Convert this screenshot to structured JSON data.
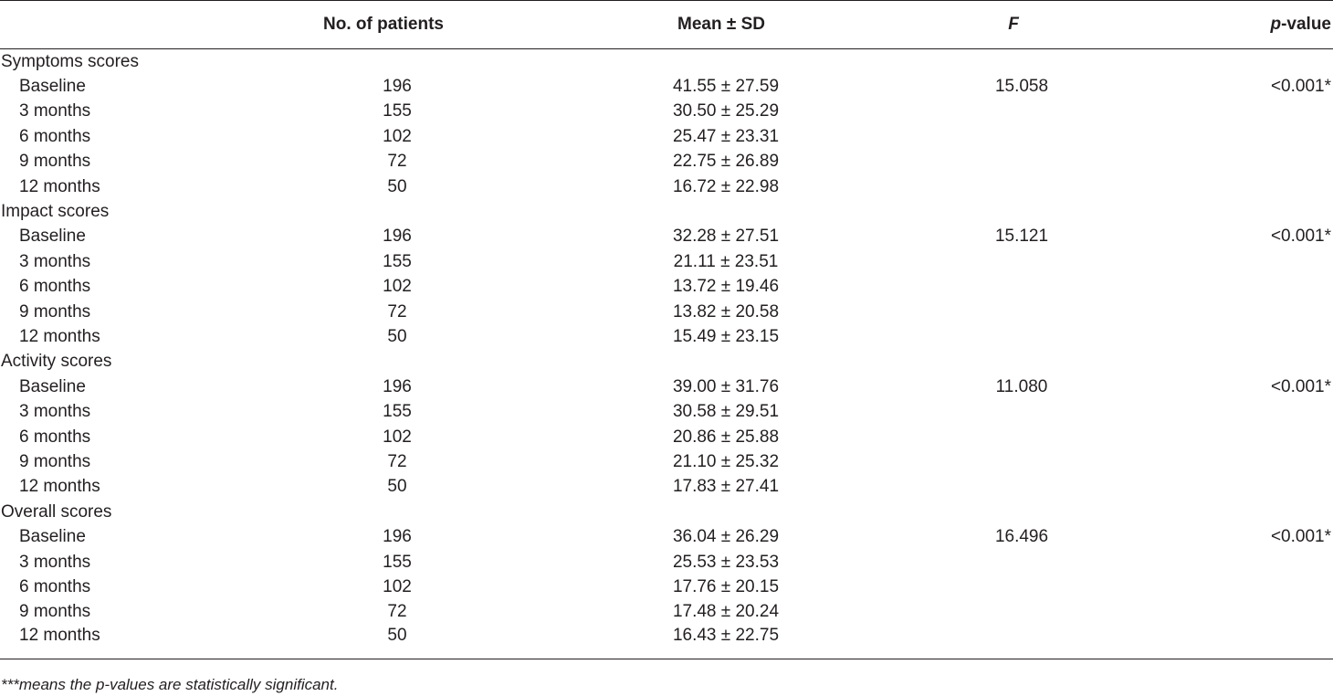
{
  "table": {
    "headers": {
      "label": "",
      "n": "No. of patients",
      "mean": "Mean ± SD",
      "f": "F",
      "p_italic": "p",
      "p_rest": "-value"
    },
    "groups": [
      {
        "title": "Symptoms scores",
        "rows": [
          {
            "label": "Baseline",
            "n": "196",
            "mean": "41.55 ± 27.59",
            "f": "15.058",
            "p": "<0.001*"
          },
          {
            "label": "3 months",
            "n": "155",
            "mean": "30.50 ± 25.29",
            "f": "",
            "p": ""
          },
          {
            "label": "6 months",
            "n": "102",
            "mean": "25.47 ± 23.31",
            "f": "",
            "p": ""
          },
          {
            "label": "9 months",
            "n": "72",
            "mean": "22.75 ± 26.89",
            "f": "",
            "p": ""
          },
          {
            "label": "12 months",
            "n": "50",
            "mean": "16.72 ± 22.98",
            "f": "",
            "p": ""
          }
        ]
      },
      {
        "title": "Impact scores",
        "rows": [
          {
            "label": "Baseline",
            "n": "196",
            "mean": "32.28 ± 27.51",
            "f": "15.121",
            "p": "<0.001*"
          },
          {
            "label": "3 months",
            "n": "155",
            "mean": "21.11 ± 23.51",
            "f": "",
            "p": ""
          },
          {
            "label": "6 months",
            "n": "102",
            "mean": "13.72 ± 19.46",
            "f": "",
            "p": ""
          },
          {
            "label": "9 months",
            "n": "72",
            "mean": "13.82 ± 20.58",
            "f": "",
            "p": ""
          },
          {
            "label": "12 months",
            "n": "50",
            "mean": "15.49 ± 23.15",
            "f": "",
            "p": ""
          }
        ]
      },
      {
        "title": "Activity scores",
        "rows": [
          {
            "label": "Baseline",
            "n": "196",
            "mean": "39.00 ± 31.76",
            "f": "11.080",
            "p": "<0.001*"
          },
          {
            "label": "3 months",
            "n": "155",
            "mean": "30.58 ± 29.51",
            "f": "",
            "p": ""
          },
          {
            "label": "6 months",
            "n": "102",
            "mean": "20.86 ± 25.88",
            "f": "",
            "p": ""
          },
          {
            "label": "9 months",
            "n": "72",
            "mean": "21.10 ± 25.32",
            "f": "",
            "p": ""
          },
          {
            "label": "12 months",
            "n": "50",
            "mean": "17.83 ± 27.41",
            "f": "",
            "p": ""
          }
        ]
      },
      {
        "title": "Overall scores",
        "rows": [
          {
            "label": "Baseline",
            "n": "196",
            "mean": "36.04 ± 26.29",
            "f": "16.496",
            "p": "<0.001*"
          },
          {
            "label": "3 months",
            "n": "155",
            "mean": "25.53 ± 23.53",
            "f": "",
            "p": ""
          },
          {
            "label": "6 months",
            "n": "102",
            "mean": "17.76 ± 20.15",
            "f": "",
            "p": ""
          },
          {
            "label": "9 months",
            "n": "72",
            "mean": "17.48 ± 20.24",
            "f": "",
            "p": ""
          },
          {
            "label": "12 months",
            "n": "50",
            "mean": "16.43 ± 22.75",
            "f": "",
            "p": ""
          }
        ]
      }
    ]
  },
  "footnote": "***means the p-values are statistically significant."
}
